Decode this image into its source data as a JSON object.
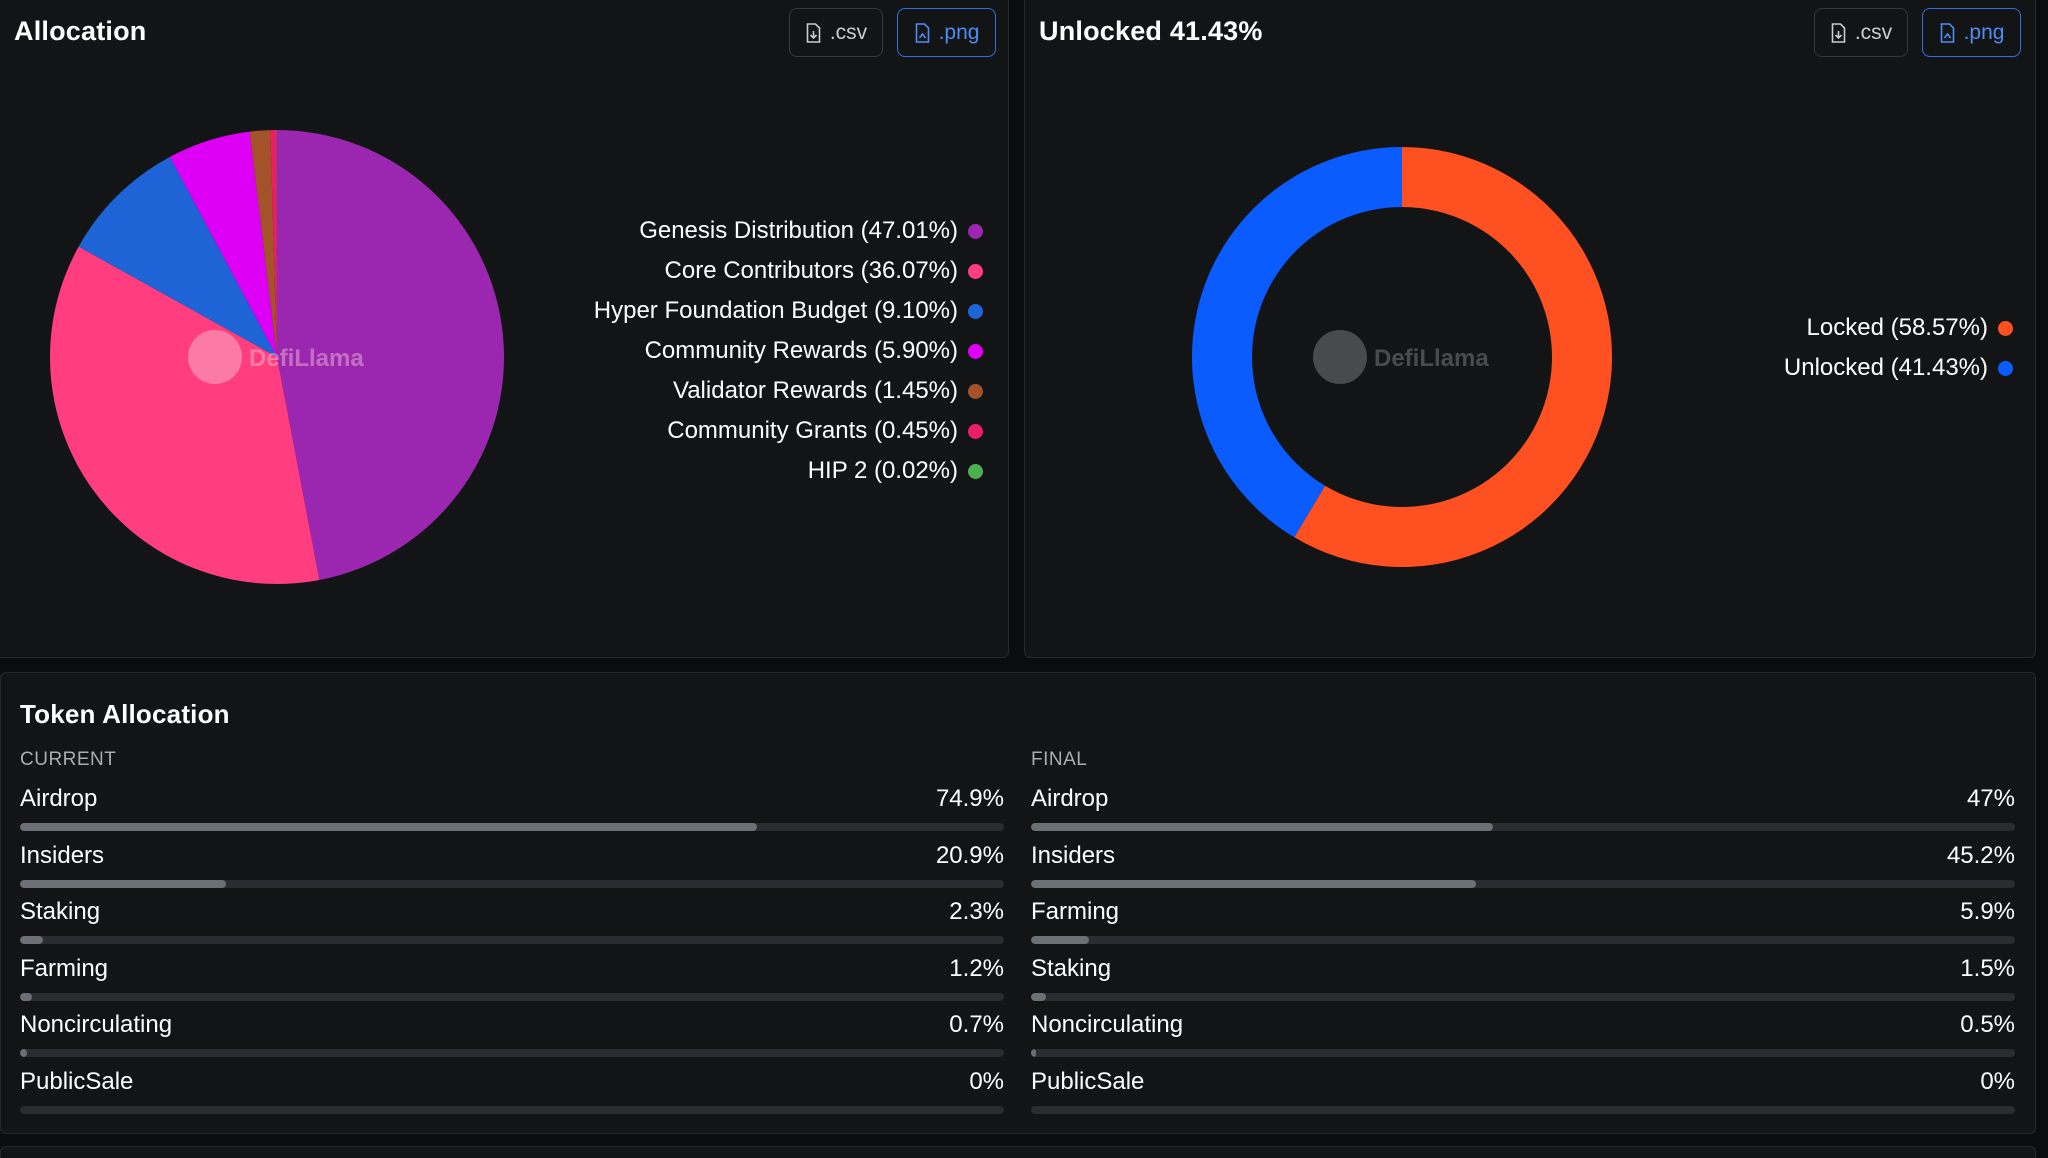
{
  "allocation_card": {
    "title": "Allocation",
    "csv_label": ".csv",
    "png_label": ".png",
    "watermark": "DefiLlama"
  },
  "unlock_card": {
    "title": "Unlocked 41.43%",
    "csv_label": ".csv",
    "png_label": ".png",
    "watermark": "DefiLlama"
  },
  "chart_data": [
    {
      "type": "pie",
      "categories": [
        "Genesis Distribution",
        "Core Contributors",
        "Hyper Foundation Budget",
        "Community Rewards",
        "Validator Rewards",
        "Community Grants",
        "HIP 2"
      ],
      "values": [
        47.01,
        36.07,
        9.1,
        5.9,
        1.45,
        0.45,
        0.02
      ],
      "labels": [
        "Genesis Distribution (47.01%)",
        "Core Contributors (36.07%)",
        "Hyper Foundation Budget (9.10%)",
        "Community Rewards (5.90%)",
        "Validator Rewards (1.45%)",
        "Community Grants (0.45%)",
        "HIP 2 (0.02%)"
      ],
      "colors": [
        "#9b27b0",
        "#ff3d7f",
        "#1e64d6",
        "#dd00f5",
        "#a3522a",
        "#e91e63",
        "#4caf50"
      ],
      "legend_position": "right"
    },
    {
      "type": "pie",
      "categories": [
        "Locked",
        "Unlocked"
      ],
      "values": [
        58.57,
        41.43
      ],
      "labels": [
        "Locked (58.57%)",
        "Unlocked (41.43%)"
      ],
      "colors": [
        "#ff5021",
        "#0b5cff"
      ],
      "legend_position": "right"
    }
  ],
  "token_allocation": {
    "title": "Token Allocation",
    "current": {
      "label": "CURRENT",
      "items": [
        {
          "name": "Airdrop",
          "pct_label": "74.9%",
          "value": 74.9
        },
        {
          "name": "Insiders",
          "pct_label": "20.9%",
          "value": 20.9
        },
        {
          "name": "Staking",
          "pct_label": "2.3%",
          "value": 2.3
        },
        {
          "name": "Farming",
          "pct_label": "1.2%",
          "value": 1.2
        },
        {
          "name": "Noncirculating",
          "pct_label": "0.7%",
          "value": 0.7
        },
        {
          "name": "PublicSale",
          "pct_label": "0%",
          "value": 0
        }
      ]
    },
    "final": {
      "label": "FINAL",
      "items": [
        {
          "name": "Airdrop",
          "pct_label": "47%",
          "value": 47
        },
        {
          "name": "Insiders",
          "pct_label": "45.2%",
          "value": 45.2
        },
        {
          "name": "Farming",
          "pct_label": "5.9%",
          "value": 5.9
        },
        {
          "name": "Staking",
          "pct_label": "1.5%",
          "value": 1.5
        },
        {
          "name": "Noncirculating",
          "pct_label": "0.5%",
          "value": 0.5
        },
        {
          "name": "PublicSale",
          "pct_label": "0%",
          "value": 0
        }
      ]
    }
  }
}
